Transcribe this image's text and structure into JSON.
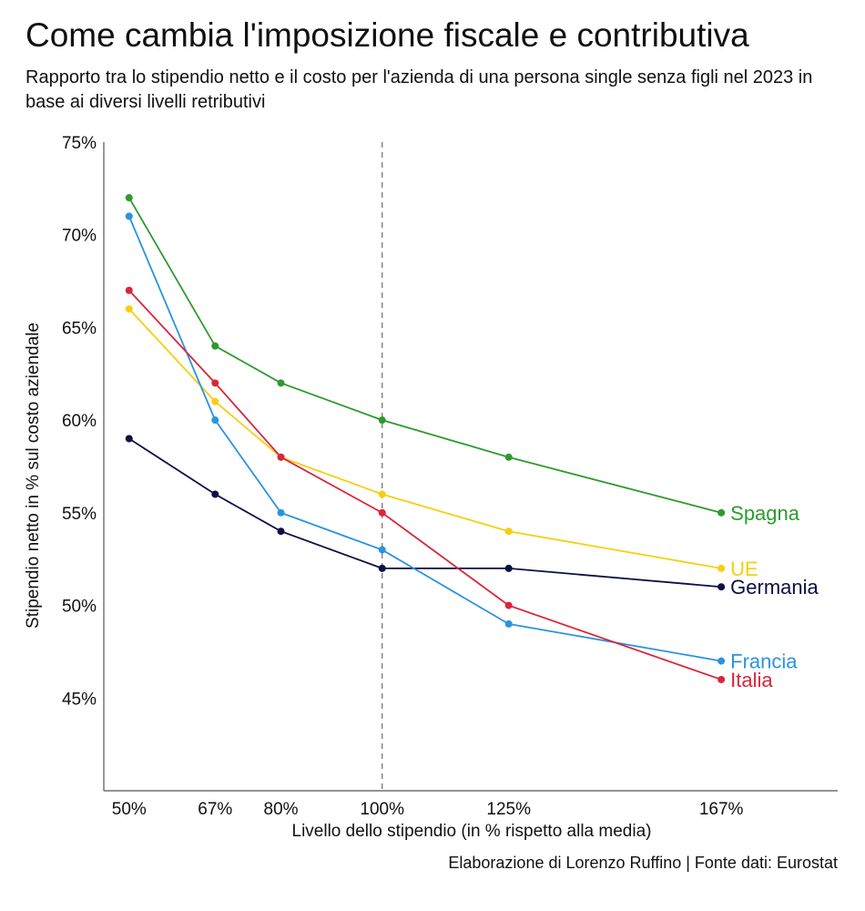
{
  "chart_data": {
    "type": "line",
    "title": "Come cambia l'imposizione fiscale e contributiva",
    "subtitle": "Rapporto tra lo stipendio netto e il costo per l'azienda di una persona single senza figli nel 2023 in base ai diversi livelli retributivi",
    "xlabel": "Livello dello stipendio (in % rispetto alla media)",
    "ylabel": "Stipendio netto in % sul costo aziendale",
    "source": "Elaborazione di Lorenzo Ruffino | Fonte dati: Eurostat",
    "x": [
      50,
      67,
      80,
      100,
      125,
      167
    ],
    "x_tick_labels": [
      "50%",
      "67%",
      "80%",
      "100%",
      "125%",
      "167%"
    ],
    "xlim": [
      45,
      190
    ],
    "ylim": [
      40,
      75
    ],
    "y_ticks": [
      45,
      50,
      55,
      60,
      65,
      70,
      75
    ],
    "y_tick_labels": [
      "45%",
      "50%",
      "55%",
      "60%",
      "65%",
      "70%",
      "75%"
    ],
    "reference_line_x": 100,
    "grid": false,
    "legend": "direct labels at line ends",
    "series": [
      {
        "name": "Spagna",
        "color": "#2e9a2e",
        "values": [
          72,
          64,
          62,
          60,
          58,
          55
        ]
      },
      {
        "name": "UE",
        "color": "#f5cf0f",
        "values": [
          66,
          61,
          58,
          56,
          54,
          52
        ]
      },
      {
        "name": "Germania",
        "color": "#0b0f45",
        "values": [
          59,
          56,
          54,
          52,
          52,
          51
        ]
      },
      {
        "name": "Francia",
        "color": "#2b93e0",
        "values": [
          71,
          60,
          55,
          53,
          49,
          47
        ]
      },
      {
        "name": "Italia",
        "color": "#d9263a",
        "values": [
          67,
          62,
          58,
          55,
          50,
          46
        ]
      }
    ]
  }
}
